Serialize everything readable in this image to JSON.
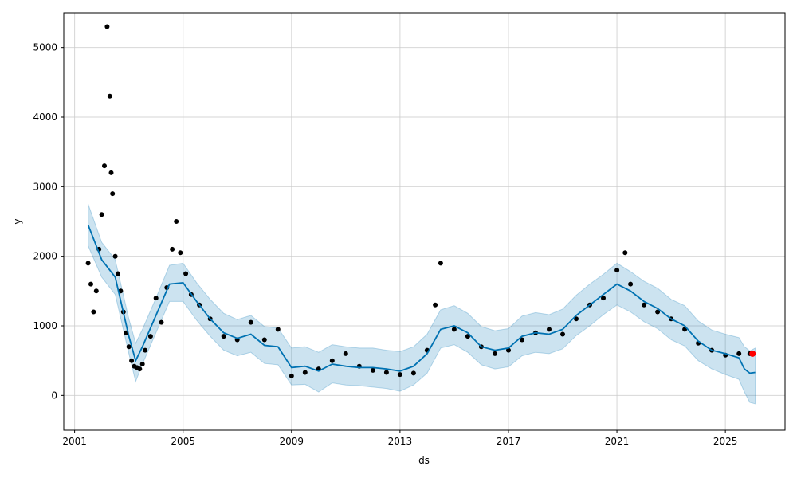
{
  "chart_data": {
    "type": "line",
    "xlabel": "ds",
    "ylabel": "y",
    "xlim": [
      2000.6,
      2027.2
    ],
    "ylim": [
      -500,
      5500
    ],
    "x_ticks": [
      2001,
      2005,
      2009,
      2013,
      2017,
      2021,
      2025
    ],
    "x_tick_labels": [
      "2001",
      "2005",
      "2009",
      "2013",
      "2017",
      "2021",
      "2025"
    ],
    "y_ticks": [
      0,
      1000,
      2000,
      3000,
      4000,
      5000
    ],
    "y_tick_labels": [
      "0",
      "1000",
      "2000",
      "3000",
      "4000",
      "5000"
    ],
    "grid": true,
    "colors": {
      "observed": "#000000",
      "forecast_line": "#0072B2",
      "uncertainty": "#0072B2",
      "highlight": "#ff0000"
    },
    "series": [
      {
        "kind": "observed-points",
        "x": [
          2001.5,
          2001.6,
          2001.7,
          2001.8,
          2001.9,
          2002.0,
          2002.1,
          2002.2,
          2002.3,
          2002.35,
          2002.4,
          2002.5,
          2002.6,
          2002.7,
          2002.8,
          2002.9,
          2003.0,
          2003.1,
          2003.2,
          2003.3,
          2003.4,
          2003.5,
          2003.6,
          2003.8,
          2004.0,
          2004.2,
          2004.4,
          2004.6,
          2004.75,
          2004.9,
          2005.1,
          2005.3,
          2005.6,
          2006.0,
          2006.5,
          2007.0,
          2007.5,
          2008.0,
          2008.5,
          2009.0,
          2009.5,
          2010.0,
          2010.5,
          2011.0,
          2011.5,
          2012.0,
          2012.5,
          2013.0,
          2013.5,
          2014.0,
          2014.3,
          2014.5,
          2015.0,
          2015.5,
          2016.0,
          2016.5,
          2017.0,
          2017.5,
          2018.0,
          2018.5,
          2019.0,
          2019.5,
          2020.0,
          2020.5,
          2021.0,
          2021.3,
          2021.5,
          2022.0,
          2022.5,
          2023.0,
          2023.5,
          2024.0,
          2024.5,
          2025.0,
          2025.5,
          2025.9
        ],
        "y": [
          1900,
          1600,
          1200,
          1500,
          2100,
          2600,
          3300,
          5300,
          4300,
          3200,
          2900,
          2000,
          1750,
          1500,
          1200,
          900,
          700,
          500,
          420,
          400,
          380,
          450,
          650,
          850,
          1400,
          1050,
          1550,
          2100,
          2500,
          2050,
          1750,
          1450,
          1300,
          1100,
          850,
          800,
          1050,
          800,
          950,
          280,
          330,
          380,
          500,
          600,
          420,
          360,
          330,
          300,
          320,
          650,
          1300,
          1900,
          950,
          850,
          700,
          600,
          650,
          800,
          900,
          950,
          880,
          1100,
          1300,
          1400,
          1800,
          2050,
          1600,
          1300,
          1200,
          1100,
          950,
          750,
          650,
          580,
          600,
          600
        ]
      },
      {
        "kind": "forecast",
        "x": [
          2001.5,
          2002.0,
          2002.5,
          2003.0,
          2003.25,
          2003.5,
          2004.0,
          2004.5,
          2005.0,
          2005.5,
          2006.0,
          2006.5,
          2007.0,
          2007.5,
          2008.0,
          2008.5,
          2009.0,
          2009.5,
          2010.0,
          2010.5,
          2011.0,
          2011.5,
          2012.0,
          2012.5,
          2013.0,
          2013.5,
          2014.0,
          2014.5,
          2015.0,
          2015.5,
          2016.0,
          2016.5,
          2017.0,
          2017.5,
          2018.0,
          2018.5,
          2019.0,
          2019.5,
          2020.0,
          2020.5,
          2021.0,
          2021.5,
          2022.0,
          2022.5,
          2023.0,
          2023.5,
          2024.0,
          2024.5,
          2025.0,
          2025.5,
          2025.7,
          2025.9,
          2026.1
        ],
        "yhat": [
          2450,
          1950,
          1700,
          850,
          500,
          700,
          1150,
          1600,
          1620,
          1350,
          1100,
          900,
          820,
          880,
          720,
          700,
          400,
          420,
          350,
          450,
          420,
          400,
          400,
          380,
          350,
          420,
          600,
          950,
          1000,
          900,
          700,
          650,
          680,
          850,
          900,
          880,
          950,
          1150,
          1300,
          1450,
          1600,
          1500,
          1350,
          1250,
          1100,
          1000,
          780,
          650,
          600,
          540,
          380,
          320,
          330
        ],
        "yhat_lower": [
          2150,
          1700,
          1450,
          600,
          200,
          450,
          900,
          1350,
          1350,
          1080,
          850,
          650,
          570,
          620,
          460,
          440,
          150,
          160,
          50,
          180,
          150,
          140,
          120,
          100,
          60,
          150,
          320,
          680,
          730,
          620,
          440,
          380,
          410,
          570,
          620,
          600,
          670,
          860,
          1000,
          1160,
          1300,
          1200,
          1060,
          960,
          800,
          710,
          500,
          380,
          300,
          230,
          50,
          -100,
          -120
        ],
        "yhat_upper": [
          2750,
          2200,
          1950,
          1100,
          750,
          950,
          1400,
          1870,
          1900,
          1620,
          1380,
          1180,
          1090,
          1150,
          990,
          970,
          680,
          700,
          620,
          730,
          700,
          680,
          680,
          650,
          630,
          700,
          880,
          1230,
          1290,
          1180,
          990,
          930,
          960,
          1140,
          1190,
          1160,
          1240,
          1440,
          1600,
          1740,
          1900,
          1780,
          1640,
          1540,
          1380,
          1290,
          1070,
          940,
          880,
          830,
          700,
          640,
          680
        ]
      },
      {
        "kind": "highlight-point",
        "x": [
          2026.0
        ],
        "y": [
          600
        ]
      }
    ]
  }
}
